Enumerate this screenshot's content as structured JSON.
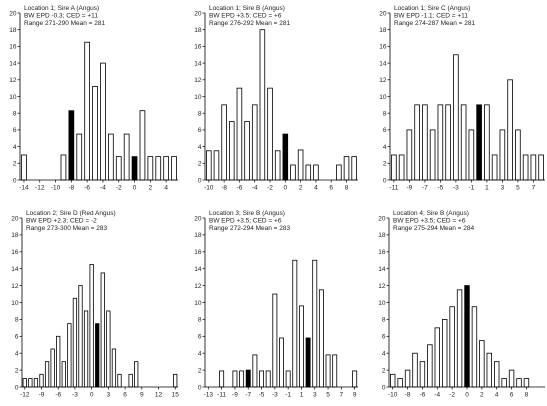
{
  "chart_data": [
    {
      "type": "bar",
      "label_lines": [
        "Location 1; Sire A (Angus)",
        "BW EPD -0.3; CED = +11",
        "Range 271-290  Mean = 281"
      ],
      "x_tick_labels": [
        "-14",
        "-12",
        "-10",
        "-8",
        "-6",
        "-4",
        "-2",
        "0",
        "2",
        "4"
      ],
      "x_tick_values": [
        -14,
        -12,
        -10,
        -8,
        -6,
        -4,
        -2,
        0,
        2,
        4
      ],
      "y_ticks": [
        0,
        2,
        4,
        6,
        8,
        10,
        12,
        14,
        16,
        18,
        20
      ],
      "ylim": [
        0,
        20
      ],
      "bars": [
        {
          "x": -14,
          "value": 3.0,
          "highlight": false
        },
        {
          "x": -9,
          "value": 3.0,
          "highlight": false
        },
        {
          "x": -8,
          "value": 8.3,
          "highlight": true
        },
        {
          "x": -7,
          "value": 5.5,
          "highlight": false
        },
        {
          "x": -6,
          "value": 16.5,
          "highlight": false
        },
        {
          "x": -5,
          "value": 11.2,
          "highlight": false
        },
        {
          "x": -4,
          "value": 14.0,
          "highlight": false
        },
        {
          "x": -3,
          "value": 5.5,
          "highlight": false
        },
        {
          "x": -2,
          "value": 2.8,
          "highlight": false
        },
        {
          "x": -1,
          "value": 5.5,
          "highlight": false
        },
        {
          "x": 0,
          "value": 2.8,
          "highlight": true
        },
        {
          "x": 1,
          "value": 8.3,
          "highlight": false
        },
        {
          "x": 2,
          "value": 2.8,
          "highlight": false
        },
        {
          "x": 3,
          "value": 2.8,
          "highlight": false
        },
        {
          "x": 4,
          "value": 2.8,
          "highlight": false
        },
        {
          "x": 5,
          "value": 2.8,
          "highlight": false
        }
      ]
    },
    {
      "type": "bar",
      "label_lines": [
        "Location 1; Sire B (Angus)",
        "BW EPD +3.5; CED = +6",
        "Range 276-292  Mean = 281"
      ],
      "x_tick_labels": [
        "-10",
        "-8",
        "-6",
        "-4",
        "-2",
        "0",
        "2",
        "4",
        "6",
        "8"
      ],
      "x_tick_values": [
        -10,
        -8,
        -6,
        -4,
        -2,
        0,
        2,
        4,
        6,
        8
      ],
      "y_ticks": [
        0,
        2,
        4,
        6,
        8,
        10,
        12,
        14,
        16,
        18,
        20
      ],
      "ylim": [
        0,
        20
      ],
      "bars": [
        {
          "x": -10,
          "value": 3.5,
          "highlight": false
        },
        {
          "x": -9,
          "value": 3.5,
          "highlight": false
        },
        {
          "x": -8,
          "value": 9.0,
          "highlight": false
        },
        {
          "x": -7,
          "value": 7.0,
          "highlight": false
        },
        {
          "x": -6,
          "value": 11.0,
          "highlight": false
        },
        {
          "x": -5,
          "value": 7.0,
          "highlight": false
        },
        {
          "x": -4,
          "value": 9.0,
          "highlight": false
        },
        {
          "x": -3,
          "value": 18.0,
          "highlight": false
        },
        {
          "x": -2,
          "value": 11.0,
          "highlight": false
        },
        {
          "x": -1,
          "value": 3.5,
          "highlight": false
        },
        {
          "x": 0,
          "value": 5.5,
          "highlight": true
        },
        {
          "x": 1,
          "value": 1.8,
          "highlight": false
        },
        {
          "x": 2,
          "value": 3.6,
          "highlight": false
        },
        {
          "x": 3,
          "value": 1.8,
          "highlight": false
        },
        {
          "x": 4,
          "value": 1.8,
          "highlight": false
        },
        {
          "x": 7,
          "value": 1.8,
          "highlight": false
        },
        {
          "x": 8,
          "value": 2.8,
          "highlight": false
        },
        {
          "x": 9,
          "value": 2.8,
          "highlight": false
        }
      ]
    },
    {
      "type": "bar",
      "label_lines": [
        "Location 1; Sire C (Angus)",
        "BW EPD -1.1; CED = +11",
        "Range 274-287  Mean = 281"
      ],
      "x_tick_labels": [
        "-11",
        "-9",
        "-7",
        "-5",
        "-3",
        "-1",
        "1",
        "3",
        "5",
        "7"
      ],
      "x_tick_values": [
        -11,
        -9,
        -7,
        -5,
        -3,
        -1,
        1,
        3,
        5,
        7
      ],
      "y_ticks": [
        0,
        2,
        4,
        6,
        8,
        10,
        12,
        14,
        16,
        18,
        20
      ],
      "ylim": [
        0,
        20
      ],
      "bars": [
        {
          "x": -11,
          "value": 3.0,
          "highlight": false
        },
        {
          "x": -10,
          "value": 3.0,
          "highlight": false
        },
        {
          "x": -9,
          "value": 6.0,
          "highlight": false
        },
        {
          "x": -8,
          "value": 9.0,
          "highlight": false
        },
        {
          "x": -7,
          "value": 9.0,
          "highlight": false
        },
        {
          "x": -6,
          "value": 6.0,
          "highlight": false
        },
        {
          "x": -5,
          "value": 9.0,
          "highlight": false
        },
        {
          "x": -4,
          "value": 9.0,
          "highlight": false
        },
        {
          "x": -3,
          "value": 15.0,
          "highlight": false
        },
        {
          "x": -2,
          "value": 9.0,
          "highlight": false
        },
        {
          "x": -1,
          "value": 6.0,
          "highlight": false
        },
        {
          "x": 0,
          "value": 9.0,
          "highlight": true
        },
        {
          "x": 1,
          "value": 9.0,
          "highlight": false
        },
        {
          "x": 2,
          "value": 3.0,
          "highlight": false
        },
        {
          "x": 3,
          "value": 6.0,
          "highlight": false
        },
        {
          "x": 4,
          "value": 12.0,
          "highlight": false
        },
        {
          "x": 5,
          "value": 6.0,
          "highlight": false
        },
        {
          "x": 6,
          "value": 3.0,
          "highlight": false
        },
        {
          "x": 7,
          "value": 3.0,
          "highlight": false
        },
        {
          "x": 8,
          "value": 3.0,
          "highlight": false
        }
      ]
    },
    {
      "type": "bar",
      "label_lines": [
        "Location 2; Sire D (Red Angus)",
        "BW EPD +2.3; CED = -2",
        "Range 273-300  Mean = 283"
      ],
      "x_tick_labels": [
        "-12",
        "-9",
        "-6",
        "-3",
        "0",
        "3",
        "6",
        "9",
        "12",
        "15"
      ],
      "x_tick_values": [
        -12,
        -9,
        -6,
        -3,
        0,
        3,
        6,
        9,
        12,
        15
      ],
      "y_ticks": [
        0,
        2,
        4,
        6,
        8,
        10,
        12,
        14,
        16,
        18,
        20
      ],
      "ylim": [
        0,
        20
      ],
      "bars": [
        {
          "x": -12,
          "value": 1.0,
          "highlight": false
        },
        {
          "x": -11,
          "value": 1.0,
          "highlight": false
        },
        {
          "x": -10,
          "value": 1.0,
          "highlight": false
        },
        {
          "x": -9,
          "value": 1.5,
          "highlight": false
        },
        {
          "x": -8,
          "value": 3.0,
          "highlight": false
        },
        {
          "x": -7,
          "value": 4.5,
          "highlight": false
        },
        {
          "x": -6,
          "value": 6.0,
          "highlight": false
        },
        {
          "x": -5,
          "value": 3.0,
          "highlight": false
        },
        {
          "x": -4,
          "value": 7.5,
          "highlight": false
        },
        {
          "x": -3,
          "value": 10.5,
          "highlight": false
        },
        {
          "x": -2,
          "value": 12.0,
          "highlight": false
        },
        {
          "x": -1,
          "value": 9.0,
          "highlight": false
        },
        {
          "x": 0,
          "value": 14.5,
          "highlight": false
        },
        {
          "x": 1,
          "value": 7.5,
          "highlight": true
        },
        {
          "x": 2,
          "value": 13.5,
          "highlight": false
        },
        {
          "x": 3,
          "value": 9.0,
          "highlight": false
        },
        {
          "x": 4,
          "value": 4.5,
          "highlight": false
        },
        {
          "x": 5,
          "value": 1.5,
          "highlight": false
        },
        {
          "x": 7,
          "value": 1.5,
          "highlight": false
        },
        {
          "x": 8,
          "value": 3.0,
          "highlight": false
        },
        {
          "x": 15,
          "value": 1.5,
          "highlight": false
        }
      ]
    },
    {
      "type": "bar",
      "label_lines": [
        "Location 3; Sire B (Angus)",
        "BW EPD +3.5; CED = +6",
        "Range 272-294  Mean = 283"
      ],
      "x_tick_labels": [
        "-13",
        "-11",
        "-9",
        "-7",
        "-5",
        "-3",
        "-1",
        "1",
        "3",
        "5",
        "7",
        "9"
      ],
      "x_tick_values": [
        -13,
        -11,
        -9,
        -7,
        -5,
        -3,
        -1,
        1,
        3,
        5,
        7,
        9
      ],
      "y_ticks": [
        0,
        2,
        4,
        6,
        8,
        10,
        12,
        14,
        16,
        18,
        20
      ],
      "ylim": [
        0,
        20
      ],
      "bars": [
        {
          "x": -11,
          "value": 1.9,
          "highlight": false
        },
        {
          "x": -9,
          "value": 1.9,
          "highlight": false
        },
        {
          "x": -8,
          "value": 1.9,
          "highlight": false
        },
        {
          "x": -7,
          "value": 2.0,
          "highlight": true
        },
        {
          "x": -6,
          "value": 3.8,
          "highlight": false
        },
        {
          "x": -5,
          "value": 1.9,
          "highlight": false
        },
        {
          "x": -4,
          "value": 1.9,
          "highlight": false
        },
        {
          "x": -3,
          "value": 11.0,
          "highlight": false
        },
        {
          "x": -2,
          "value": 5.8,
          "highlight": false
        },
        {
          "x": -1,
          "value": 1.9,
          "highlight": false
        },
        {
          "x": 0,
          "value": 15.0,
          "highlight": false
        },
        {
          "x": 1,
          "value": 9.6,
          "highlight": false
        },
        {
          "x": 2,
          "value": 5.8,
          "highlight": true
        },
        {
          "x": 3,
          "value": 15.0,
          "highlight": false
        },
        {
          "x": 4,
          "value": 11.5,
          "highlight": false
        },
        {
          "x": 5,
          "value": 3.8,
          "highlight": false
        },
        {
          "x": 6,
          "value": 3.8,
          "highlight": false
        },
        {
          "x": 9,
          "value": 1.9,
          "highlight": false
        }
      ]
    },
    {
      "type": "bar",
      "label_lines": [
        "Location 4; Sire B (Angus)",
        "BW EPD +3.5; CED = +6",
        "Range 275-294  Mean = 284"
      ],
      "x_tick_labels": [
        "-10",
        "-8",
        "-6",
        "-4",
        "-2",
        "0",
        "2",
        "4",
        "6",
        "8"
      ],
      "x_tick_values": [
        -10,
        -8,
        -6,
        -4,
        -2,
        0,
        2,
        4,
        6,
        8
      ],
      "y_ticks": [
        0,
        2,
        4,
        6,
        8,
        10,
        12,
        14,
        16,
        18,
        20
      ],
      "ylim": [
        0,
        20
      ],
      "bars": [
        {
          "x": -10,
          "value": 1.5,
          "highlight": false
        },
        {
          "x": -9,
          "value": 1.0,
          "highlight": false
        },
        {
          "x": -8,
          "value": 2.0,
          "highlight": false
        },
        {
          "x": -7,
          "value": 4.0,
          "highlight": false
        },
        {
          "x": -6,
          "value": 3.0,
          "highlight": false
        },
        {
          "x": -5,
          "value": 5.0,
          "highlight": false
        },
        {
          "x": -4,
          "value": 7.0,
          "highlight": false
        },
        {
          "x": -3,
          "value": 8.0,
          "highlight": false
        },
        {
          "x": -2,
          "value": 9.5,
          "highlight": false
        },
        {
          "x": -1,
          "value": 11.5,
          "highlight": false
        },
        {
          "x": 0,
          "value": 12.0,
          "highlight": true
        },
        {
          "x": 1,
          "value": 9.5,
          "highlight": false
        },
        {
          "x": 2,
          "value": 5.5,
          "highlight": false
        },
        {
          "x": 3,
          "value": 4.0,
          "highlight": false
        },
        {
          "x": 4,
          "value": 3.0,
          "highlight": false
        },
        {
          "x": 5,
          "value": 1.0,
          "highlight": false
        },
        {
          "x": 6,
          "value": 2.0,
          "highlight": false
        },
        {
          "x": 7,
          "value": 1.0,
          "highlight": false
        },
        {
          "x": 8,
          "value": 1.0,
          "highlight": false
        }
      ]
    }
  ]
}
